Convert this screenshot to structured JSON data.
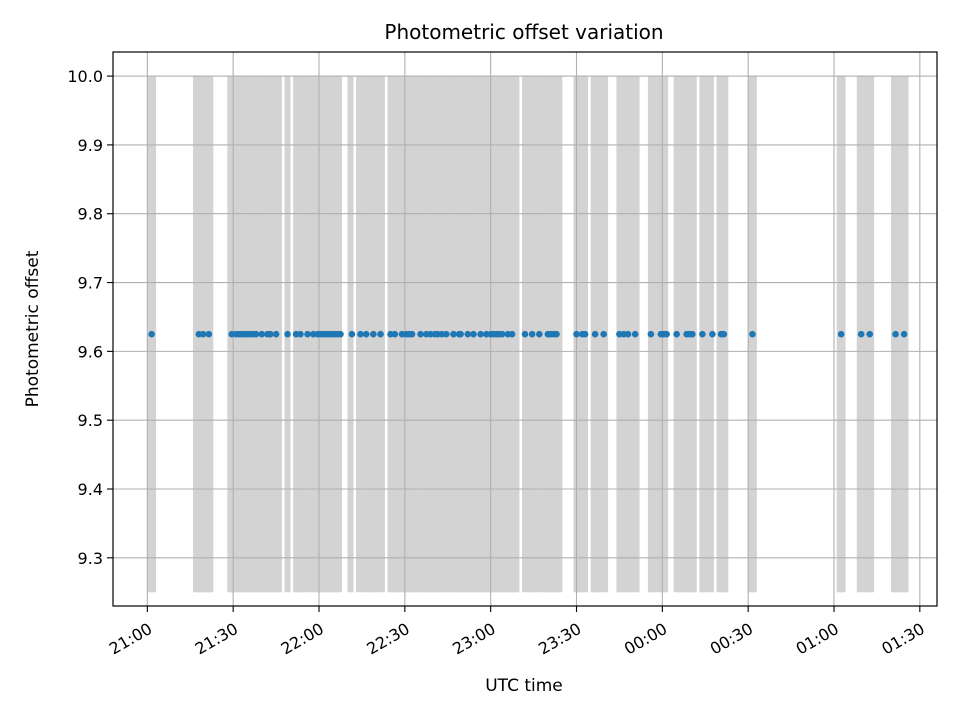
{
  "chart_data": {
    "type": "scatter",
    "title": "Photometric offset variation",
    "xlabel": "UTC time",
    "ylabel": "Photometric offset",
    "ylim": [
      9.23,
      10.035
    ],
    "xlim": [
      "20:48",
      "01:36"
    ],
    "grid": true,
    "yticks": [
      9.3,
      9.4,
      9.5,
      9.6,
      9.7,
      9.8,
      9.9,
      10.0
    ],
    "xticks": [
      "21:00",
      "21:30",
      "22:00",
      "22:30",
      "23:00",
      "23:30",
      "00:00",
      "00:30",
      "01:00",
      "01:30"
    ],
    "xtick_labels_rotated": true,
    "series": [
      {
        "marker": "circle",
        "color": "#1f77b4",
        "times": [
          "21:01:30",
          "21:18:00",
          "21:19:30",
          "21:21:30",
          "21:29:30",
          "21:31:00",
          "21:32:00",
          "21:33:00",
          "21:34:00",
          "21:35:00",
          "21:36:00",
          "21:37:00",
          "21:38:00",
          "21:40:00",
          "21:42:00",
          "21:43:00",
          "21:45:00",
          "21:49:00",
          "21:52:00",
          "21:53:30",
          "21:56:00",
          "21:58:00",
          "21:59:30",
          "22:00:30",
          "22:01:30",
          "22:02:30",
          "22:03:30",
          "22:04:30",
          "22:05:30",
          "22:06:30",
          "22:07:30",
          "22:11:30",
          "22:14:30",
          "22:16:30",
          "22:19:00",
          "22:21:30",
          "22:25:00",
          "22:26:30",
          "22:29:00",
          "22:30:30",
          "22:31:30",
          "22:32:30",
          "22:35:30",
          "22:37:30",
          "22:39:00",
          "22:40:30",
          "22:41:30",
          "22:43:00",
          "22:44:30",
          "22:47:00",
          "22:49:00",
          "22:49:30",
          "22:52:00",
          "22:54:00",
          "22:56:30",
          "22:58:30",
          "23:00:00",
          "23:01:00",
          "23:02:00",
          "23:03:00",
          "23:04:00",
          "23:06:00",
          "23:07:30",
          "23:12:00",
          "23:14:30",
          "23:17:00",
          "23:20:00",
          "23:21:00",
          "23:22:00",
          "23:23:00",
          "23:30:00",
          "23:32:00",
          "23:33:00",
          "23:36:30",
          "23:39:30",
          "23:45:00",
          "23:46:30",
          "23:48:00",
          "23:50:30",
          "23:56:00",
          "23:59:30",
          "00:00:30",
          "00:01:30",
          "00:05:00",
          "00:08:30",
          "00:09:30",
          "00:10:30",
          "00:14:00",
          "00:17:30",
          "00:20:30",
          "00:21:30",
          "00:31:30",
          "01:02:30",
          "01:09:30",
          "01:12:30",
          "01:21:30",
          "01:24:30"
        ],
        "values": [
          9.625,
          9.625,
          9.625,
          9.625,
          9.625,
          9.625,
          9.625,
          9.625,
          9.625,
          9.625,
          9.625,
          9.625,
          9.625,
          9.625,
          9.625,
          9.625,
          9.625,
          9.625,
          9.625,
          9.625,
          9.625,
          9.625,
          9.625,
          9.625,
          9.625,
          9.625,
          9.625,
          9.625,
          9.625,
          9.625,
          9.625,
          9.625,
          9.625,
          9.625,
          9.625,
          9.625,
          9.625,
          9.625,
          9.625,
          9.625,
          9.625,
          9.625,
          9.625,
          9.625,
          9.625,
          9.625,
          9.625,
          9.625,
          9.625,
          9.625,
          9.625,
          9.625,
          9.625,
          9.625,
          9.625,
          9.625,
          9.625,
          9.625,
          9.625,
          9.625,
          9.625,
          9.625,
          9.625,
          9.625,
          9.625,
          9.625,
          9.625,
          9.625,
          9.625,
          9.625,
          9.625,
          9.625,
          9.625,
          9.625,
          9.625,
          9.625,
          9.625,
          9.625,
          9.625,
          9.625,
          9.625,
          9.625,
          9.625,
          9.625,
          9.625,
          9.625,
          9.625,
          9.625,
          9.625,
          9.625,
          9.625,
          9.625,
          9.625,
          9.625,
          9.625,
          9.625,
          9.625
        ]
      }
    ],
    "vertical_bands": {
      "color": "#d3d3d3",
      "y_from": 9.25,
      "y_to": 10.0,
      "times": [
        "21:01:00",
        "21:02:00",
        "21:17:00",
        "21:18:00",
        "21:19:00",
        "21:20:00",
        "21:21:00",
        "21:22:00",
        "21:29:00",
        "21:30:00",
        "21:31:00",
        "21:32:00",
        "21:33:00",
        "21:34:00",
        "21:35:00",
        "21:36:00",
        "21:37:00",
        "21:38:00",
        "21:39:00",
        "21:40:00",
        "21:42:00",
        "21:43:00",
        "21:44:00",
        "21:45:00",
        "21:46:00",
        "21:49:00",
        "21:52:00",
        "21:53:00",
        "21:54:00",
        "21:56:00",
        "21:58:00",
        "21:59:00",
        "22:00:00",
        "22:01:00",
        "22:02:00",
        "22:03:00",
        "22:04:00",
        "22:05:00",
        "22:06:00",
        "22:07:00",
        "22:11:00",
        "22:14:00",
        "22:15:00",
        "22:17:00",
        "22:19:00",
        "22:20:00",
        "22:22:00",
        "22:25:00",
        "22:26:00",
        "22:27:00",
        "22:29:00",
        "22:30:00",
        "22:31:00",
        "22:32:00",
        "22:33:00",
        "22:35:00",
        "22:36:00",
        "22:38:00",
        "22:39:00",
        "22:40:00",
        "22:41:00",
        "22:42:00",
        "22:44:00",
        "22:45:00",
        "22:47:00",
        "22:48:00",
        "22:49:00",
        "22:50:00",
        "22:52:00",
        "22:53:00",
        "22:54:00",
        "22:55:00",
        "22:56:00",
        "22:57:00",
        "22:58:00",
        "22:59:00",
        "23:00:00",
        "23:01:00",
        "23:02:00",
        "23:03:00",
        "23:04:00",
        "23:05:00",
        "23:06:00",
        "23:07:00",
        "23:08:00",
        "23:09:00",
        "23:12:00",
        "23:14:00",
        "23:15:00",
        "23:17:00",
        "23:19:00",
        "23:20:00",
        "23:21:00",
        "23:22:00",
        "23:23:00",
        "23:24:00",
        "23:30:00",
        "23:31:00",
        "23:32:00",
        "23:33:00",
        "23:36:00",
        "23:37:00",
        "23:38:00",
        "23:40:00",
        "23:45:00",
        "23:46:00",
        "23:47:00",
        "23:48:00",
        "23:50:00",
        "23:51:00",
        "23:56:00",
        "23:57:00",
        "23:59:00",
        "24:00:00",
        "24:01:00",
        "24:05:00",
        "24:06:00",
        "24:08:00",
        "24:09:00",
        "24:10:00",
        "24:11:00",
        "24:14:00",
        "24:15:00",
        "24:17:00",
        "24:20:00",
        "24:21:00",
        "24:22:00",
        "24:31:00",
        "24:32:00",
        "25:02:00",
        "25:03:00",
        "25:09:00",
        "25:10:00",
        "25:12:00",
        "25:13:00",
        "25:21:00",
        "25:22:00",
        "25:24:00",
        "25:25:00"
      ]
    }
  }
}
